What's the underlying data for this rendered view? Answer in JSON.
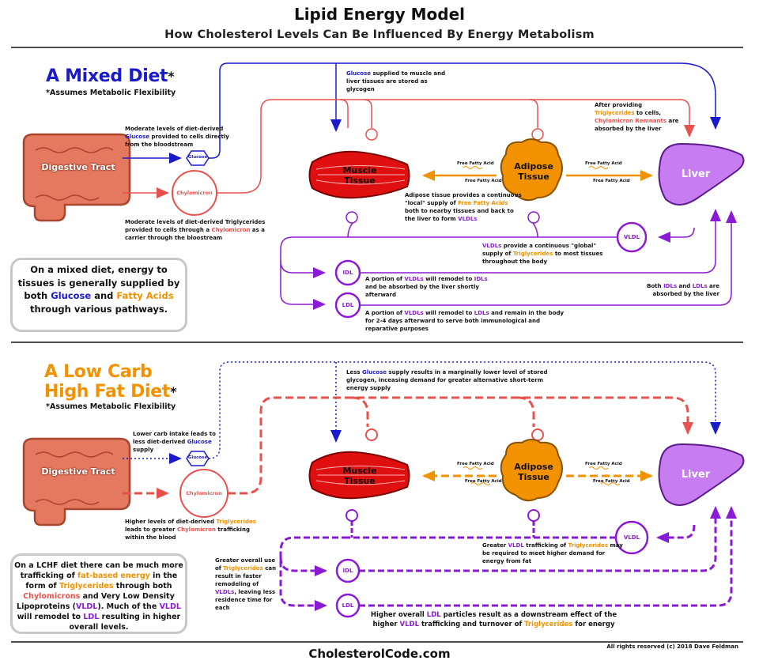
{
  "header": {
    "title": "Lipid Energy Model",
    "subtitle": "How Cholesterol Levels Can Be Influenced By Energy Metabolism"
  },
  "mixed": {
    "title_part1": "A Mixed Diet",
    "title_star": "*",
    "assumes": "*Assumes Metabolic Flexibility",
    "digestive": "Digestive Tract",
    "glucose_label": "Glucose",
    "chylomicron_label": "Chylomicron",
    "muscle": "Muscle Tissue",
    "adipose": "Adipose Tissue",
    "liver": "Liver",
    "vldl": "VLDL",
    "idl": "IDL",
    "ldl": "LDL",
    "ffa": "Free Fatty Acid",
    "note_glucose_a": "Moderate levels of diet-derived ",
    "note_glucose_b": "Glucose",
    "note_glucose_c": " provided to cells directly from the bloodstream",
    "note_tg_a": "Moderate levels of diet-derived Triglycerides provided to cells through a ",
    "note_tg_b": "Chylomicron",
    "note_tg_c": " as a carrier through the bloostream",
    "note_top_a": "Glucose",
    "note_top_b": " supplied to muscle and liver tissues are stored as glycogen",
    "note_remnant_a": "After providing ",
    "note_remnant_b": "Triglycerides",
    "note_remnant_c": " to cells, ",
    "note_remnant_d": "Chylomicron Remnants",
    "note_remnant_e": " are absorbed by the liver",
    "note_adipose_a": "Adipose tissue provides a continuous \"local\" supply of ",
    "note_adipose_b": "Free Fatty Acids",
    "note_adipose_c": " both to nearby tissues and back to the liver to form ",
    "note_adipose_d": "VLDLs",
    "note_vldl_a": "VLDLs",
    "note_vldl_b": " provide a continuous \"global\" supply of ",
    "note_vldl_c": "Triglycerides",
    "note_vldl_d": " to most tissues throughout the body",
    "note_idl_a": "A portion of ",
    "note_idl_b": "VLDLs",
    "note_idl_c": " will remodel to ",
    "note_idl_d": "IDLs",
    "note_idl_e": " and be absorbed by the liver shortly afterward",
    "note_both_a": "Both ",
    "note_both_b": "IDLs",
    "note_both_c": " and ",
    "note_both_d": "LDLs",
    "note_both_e": " are absorbed by the liver",
    "note_ldl_a": "A portion of ",
    "note_ldl_b": "VLDLs",
    "note_ldl_c": " will remodel to ",
    "note_ldl_d": "LDLs",
    "note_ldl_e": " and remain in the body for 2-4 days afterward to serve both immunological and reparative purposes",
    "box_a": "On a mixed diet, energy to tissues is generally supplied by both ",
    "box_b": "Glucose",
    "box_c": " and ",
    "box_d": "Fatty Acids",
    "box_e": " through various pathways."
  },
  "lchf": {
    "title_line1": "A Low Carb",
    "title_line2": "High Fat Diet",
    "title_star": "*",
    "assumes": "*Assumes Metabolic Flexibility",
    "digestive": "Digestive Tract",
    "glucose_label": "Glucose",
    "chylomicron_label": "Chylomicron",
    "muscle": "Muscle Tissue",
    "adipose": "Adipose Tissue",
    "liver": "Liver",
    "vldl": "VLDL",
    "idl": "IDL",
    "ldl": "LDL",
    "ffa": "Free Fatty Acid",
    "note_glucose_a": "Lower carb intake leads to less diet-derived ",
    "note_glucose_b": "Glucose",
    "note_glucose_c": " supply",
    "note_tg_a": "Higher levels of diet-derived ",
    "note_tg_b": "Triglycerides",
    "note_tg_c": " leads to greater ",
    "note_tg_d": "Chylomicron",
    "note_tg_e": " trafficking within the blood",
    "note_top_a": "Less ",
    "note_top_b": "Glucose",
    "note_top_c": " supply results in a marginally lower level of stored glycogen, inceasing demand for greater alternative short-term energy supply",
    "note_vldl_a": "Greater ",
    "note_vldl_b": "VLDL",
    "note_vldl_c": " trafficking of ",
    "note_vldl_d": "Triglycerides",
    "note_vldl_e": " may be required to meet higher demand for energy from fat",
    "note_remodel_a": "Greater overall use of ",
    "note_remodel_b": "Triglycerides",
    "note_remodel_c": " can result in faster remodeling of ",
    "note_remodel_d": "VLDLs",
    "note_remodel_e": ", leaving less residence time for each",
    "note_ldl_a": "Higher overall ",
    "note_ldl_b": "LDL",
    "note_ldl_c": " particles result as a downstream effect of the higher ",
    "note_ldl_d": "VLDL",
    "note_ldl_e": " trafficking and turnover of ",
    "note_ldl_f": "Triglycerides",
    "note_ldl_g": " for energy",
    "box_a": "On a LCHF diet there can be much more trafficking of ",
    "box_b": "fat-based energy",
    "box_c": " in the form of ",
    "box_d": "Triglycerides",
    "box_e": " through both ",
    "box_f": "Chylomicrons",
    "box_g": " and Very Low Density Lipoproteins (",
    "box_h": "VLDL",
    "box_i": "). Much of the ",
    "box_j": "VLDL",
    "box_k": " will remodel to ",
    "box_l": "LDL",
    "box_m": " resulting in higher overall levels."
  },
  "footer": {
    "site": "CholesterolCode.com",
    "rights": "All rights reserved (c) 2018 Dave Feldman"
  },
  "colors": {
    "blue": "#1a1acc",
    "red": "#e8514d",
    "orange": "#f39200",
    "purple": "#8a1ad6",
    "muscle": "#e01010",
    "liver": "#c77cf2",
    "digestive": "#e5795f"
  }
}
